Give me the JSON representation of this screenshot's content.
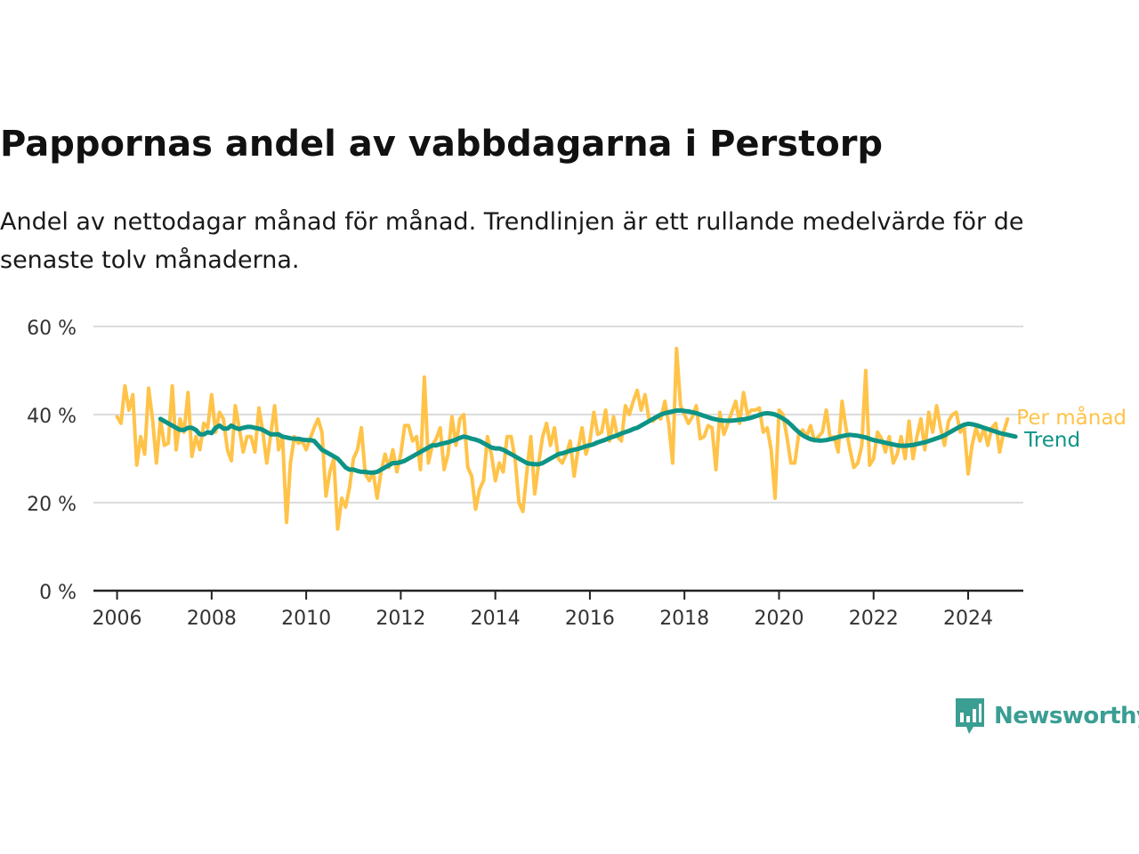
{
  "title": "Pappornas andel av vabbdagarna i Perstorp",
  "subtitle": "Andel av nettodagar månad för månad. Trendlinjen är ett rullande medelvärde för de senaste tolv månaderna.",
  "brand": {
    "name": "Newsworthy",
    "color": "#3a9e93",
    "icon": "newsworthy-bar-chart-icon"
  },
  "chart_data": {
    "type": "line",
    "x_type": "date-monthly",
    "x_start": "2006-01",
    "xlim": [
      "2005-07",
      "2025-03"
    ],
    "ylim": [
      0,
      60
    ],
    "y_unit": "%",
    "y_ticks": [
      "0 %",
      "20 %",
      "40 %",
      "60 %"
    ],
    "x_ticks": [
      "2006",
      "2008",
      "2010",
      "2012",
      "2014",
      "2016",
      "2018",
      "2020",
      "2022",
      "2024"
    ],
    "grid": "horizontal",
    "legend": "inline-right",
    "series": [
      {
        "name": "Per månad",
        "color": "#ffc349",
        "values": [
          39.5,
          38,
          46.5,
          41,
          44.5,
          28.5,
          35,
          31,
          46,
          39,
          29,
          39,
          33,
          33.5,
          46.5,
          32,
          39,
          36,
          45,
          30.5,
          35,
          32,
          38,
          37,
          44.5,
          36,
          40.5,
          39,
          32,
          29.5,
          42,
          37,
          31.5,
          35,
          35,
          31.5,
          41.5,
          36,
          29,
          35.5,
          42,
          32,
          35,
          15.5,
          29,
          35,
          33.5,
          34,
          32,
          34.5,
          37,
          39,
          36,
          21.5,
          27,
          30,
          14,
          21,
          19,
          23.5,
          30,
          32,
          37,
          26.5,
          25,
          27,
          21,
          27,
          31,
          28,
          32,
          27,
          31,
          37.5,
          37.5,
          34,
          35,
          27.5,
          48.5,
          29,
          33,
          34.5,
          37,
          27.5,
          31,
          39.5,
          33,
          39,
          40,
          28,
          26,
          18.5,
          23,
          25,
          35,
          31,
          25,
          29,
          27,
          35,
          35,
          30,
          20,
          18,
          27,
          35,
          22,
          29,
          35,
          38,
          33,
          37,
          30,
          29,
          31,
          34,
          26,
          32,
          37,
          31,
          34,
          40.5,
          35.5,
          36,
          41,
          34,
          39.5,
          35,
          34,
          42,
          40,
          43,
          45.5,
          41,
          44.5,
          39,
          38.5,
          39.5,
          39,
          43,
          38,
          29,
          55,
          42,
          40,
          38,
          39.5,
          42,
          34.5,
          35,
          37.5,
          37,
          27.5,
          40.5,
          35.5,
          38,
          40.5,
          43,
          38,
          45,
          40,
          41,
          41,
          41.5,
          36,
          37,
          32,
          21,
          41,
          40,
          35,
          29,
          29,
          35.5,
          36.5,
          35,
          37.5,
          34,
          35,
          36,
          41,
          34.5,
          35,
          31.5,
          43,
          37,
          32,
          28,
          29,
          33,
          50,
          28.5,
          30,
          36,
          34.5,
          31.5,
          35,
          29,
          31,
          35,
          30,
          38.5,
          30,
          35,
          39,
          32,
          40.5,
          36,
          42,
          37,
          33,
          38.5,
          40,
          40.5,
          36,
          37,
          26.5,
          33,
          37,
          34,
          37,
          33,
          37,
          38,
          31.5,
          36,
          39
        ]
      },
      {
        "name": "Trend",
        "color": "#0d9486",
        "values": [
          39,
          38.5,
          38,
          37.5,
          37,
          36.5,
          36.5,
          37,
          37,
          36.5,
          35.5,
          35.5,
          36,
          35.8,
          37,
          37.5,
          36.8,
          36.8,
          37.5,
          37,
          36.7,
          37,
          37.2,
          37.2,
          37,
          36.8,
          36.5,
          36,
          35.5,
          35.5,
          35.5,
          35,
          34.8,
          34.6,
          34.5,
          34.5,
          34.3,
          34.2,
          34.2,
          34,
          33,
          32,
          31.5,
          31,
          30.5,
          30,
          29,
          28,
          27.5,
          27.5,
          27.2,
          27,
          27,
          26.8,
          26.8,
          27,
          27.5,
          28,
          28.5,
          29,
          29,
          29.2,
          29.5,
          30,
          30.5,
          31,
          31.5,
          32,
          32.5,
          33,
          33,
          33.3,
          33.5,
          33.7,
          34,
          34.3,
          34.7,
          35,
          34.8,
          34.5,
          34.3,
          34,
          33.5,
          33,
          32.5,
          32.3,
          32.3,
          32,
          31.5,
          31,
          30.5,
          30,
          29.5,
          29,
          28.8,
          28.7,
          28.7,
          29,
          29.5,
          30,
          30.5,
          31,
          31.2,
          31.5,
          31.8,
          32,
          32.2,
          32.5,
          32.8,
          33,
          33.3,
          33.7,
          34,
          34.3,
          34.7,
          35,
          35.3,
          35.7,
          36,
          36.3,
          36.7,
          37,
          37.5,
          38,
          38.5,
          39,
          39.5,
          40,
          40.3,
          40.5,
          40.7,
          40.9,
          40.9,
          40.8,
          40.7,
          40.5,
          40.3,
          40,
          39.7,
          39.4,
          39.1,
          38.9,
          38.7,
          38.6,
          38.6,
          38.6,
          38.7,
          38.8,
          38.9,
          39.1,
          39.3,
          39.6,
          39.9,
          40.2,
          40.3,
          40.2,
          40,
          39.6,
          39.1,
          38.5,
          37.7,
          36.8,
          36,
          35.3,
          34.8,
          34.4,
          34.2,
          34.1,
          34.1,
          34.2,
          34.4,
          34.6,
          34.9,
          35.1,
          35.3,
          35.4,
          35.3,
          35.2,
          35,
          34.8,
          34.5,
          34.2,
          34,
          33.8,
          33.6,
          33.4,
          33.2,
          33,
          32.9,
          32.9,
          33,
          33.1,
          33.3,
          33.5,
          33.7,
          34,
          34.3,
          34.6,
          34.9,
          35.3,
          35.8,
          36.3,
          36.8,
          37.3,
          37.7,
          37.9,
          37.8,
          37.6,
          37.3,
          37,
          36.7,
          36.4,
          36.1,
          35.8,
          35.6,
          35.4,
          35.2,
          35
        ]
      }
    ]
  }
}
